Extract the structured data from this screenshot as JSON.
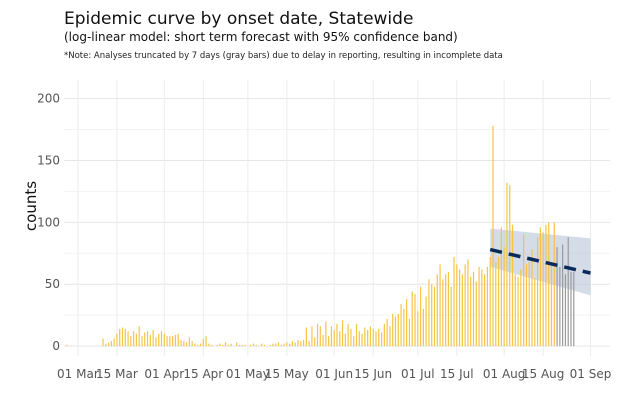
{
  "chart_data": {
    "type": "bar",
    "title": "Epidemic curve by onset date, Statewide",
    "subtitle": "(log-linear model: short term forecast with 95% confidence band)",
    "note": "*Note: Analyses truncated by 7 days (gray bars) due to delay in reporting, resulting in incomplete data",
    "xlabel": "",
    "ylabel": "counts",
    "x_start": "2020-02-26",
    "ylim": [
      -8,
      215
    ],
    "xlim": [
      "2020-02-25",
      "2020-09-08"
    ],
    "yticks": [
      0,
      50,
      100,
      150,
      200
    ],
    "xticks": [
      {
        "date": "2020-03-01",
        "label": "01 Mar"
      },
      {
        "date": "2020-03-15",
        "label": "15 Mar"
      },
      {
        "date": "2020-04-01",
        "label": "01 Apr"
      },
      {
        "date": "2020-04-15",
        "label": "15 Apr"
      },
      {
        "date": "2020-05-01",
        "label": "01 May"
      },
      {
        "date": "2020-05-15",
        "label": "15 May"
      },
      {
        "date": "2020-06-01",
        "label": "01 Jun"
      },
      {
        "date": "2020-06-15",
        "label": "15 Jun"
      },
      {
        "date": "2020-07-01",
        "label": "01 Jul"
      },
      {
        "date": "2020-07-15",
        "label": "15 Jul"
      },
      {
        "date": "2020-08-01",
        "label": "01 Aug"
      },
      {
        "date": "2020-08-15",
        "label": "15 Aug"
      },
      {
        "date": "2020-09-01",
        "label": "01 Sep"
      }
    ],
    "grid": true,
    "series": [
      {
        "color": "#f5c443",
        "values": [
          1,
          0,
          0,
          0,
          0,
          0,
          0,
          0,
          0,
          0,
          0,
          0,
          0,
          6,
          2,
          3,
          4,
          6,
          10,
          14,
          15,
          14,
          12,
          8,
          12,
          10,
          16,
          8,
          11,
          12,
          9,
          13,
          7,
          10,
          12,
          10,
          8,
          8,
          8,
          9,
          10,
          5,
          4,
          3,
          7,
          4,
          2,
          1,
          2,
          6,
          8,
          2,
          1,
          0,
          1,
          2,
          1,
          3,
          1,
          2,
          0,
          3,
          1,
          1,
          1,
          0,
          1,
          2,
          1,
          0,
          2,
          1,
          0,
          1,
          2,
          2,
          3,
          1,
          2,
          3,
          2,
          4,
          3,
          5,
          4,
          5,
          15,
          4,
          16,
          7,
          18,
          16,
          9,
          20,
          8,
          16,
          13,
          18,
          12,
          21,
          10,
          18,
          14,
          8,
          18,
          12,
          10,
          15,
          13,
          16,
          14,
          12,
          14,
          11,
          18,
          22,
          16,
          26,
          24,
          26,
          34,
          30,
          38,
          22,
          44,
          42,
          28,
          48,
          30,
          40,
          54,
          50,
          48,
          58,
          66,
          54,
          58,
          60,
          48,
          72,
          66,
          62,
          58,
          66,
          70,
          56,
          60,
          52,
          64,
          62,
          58,
          64,
          72,
          178,
          68,
          72,
          96,
          80,
          132,
          130,
          98,
          58,
          56,
          62,
          90,
          66,
          68,
          78,
          55,
          88,
          96,
          92,
          98,
          100,
          66,
          100
        ]
      },
      {
        "color": "#9a9a9a",
        "values": [
          80,
          64,
          82,
          58,
          88,
          60,
          60
        ]
      }
    ],
    "forecast": {
      "start": "2020-07-27",
      "end": "2020-09-01",
      "line_start": 78,
      "line_end": 59,
      "band_start": [
        64,
        95
      ],
      "band_end": [
        41,
        87
      ],
      "line_color": "#0b2a5b",
      "band_color": "#b7c4d8"
    }
  }
}
